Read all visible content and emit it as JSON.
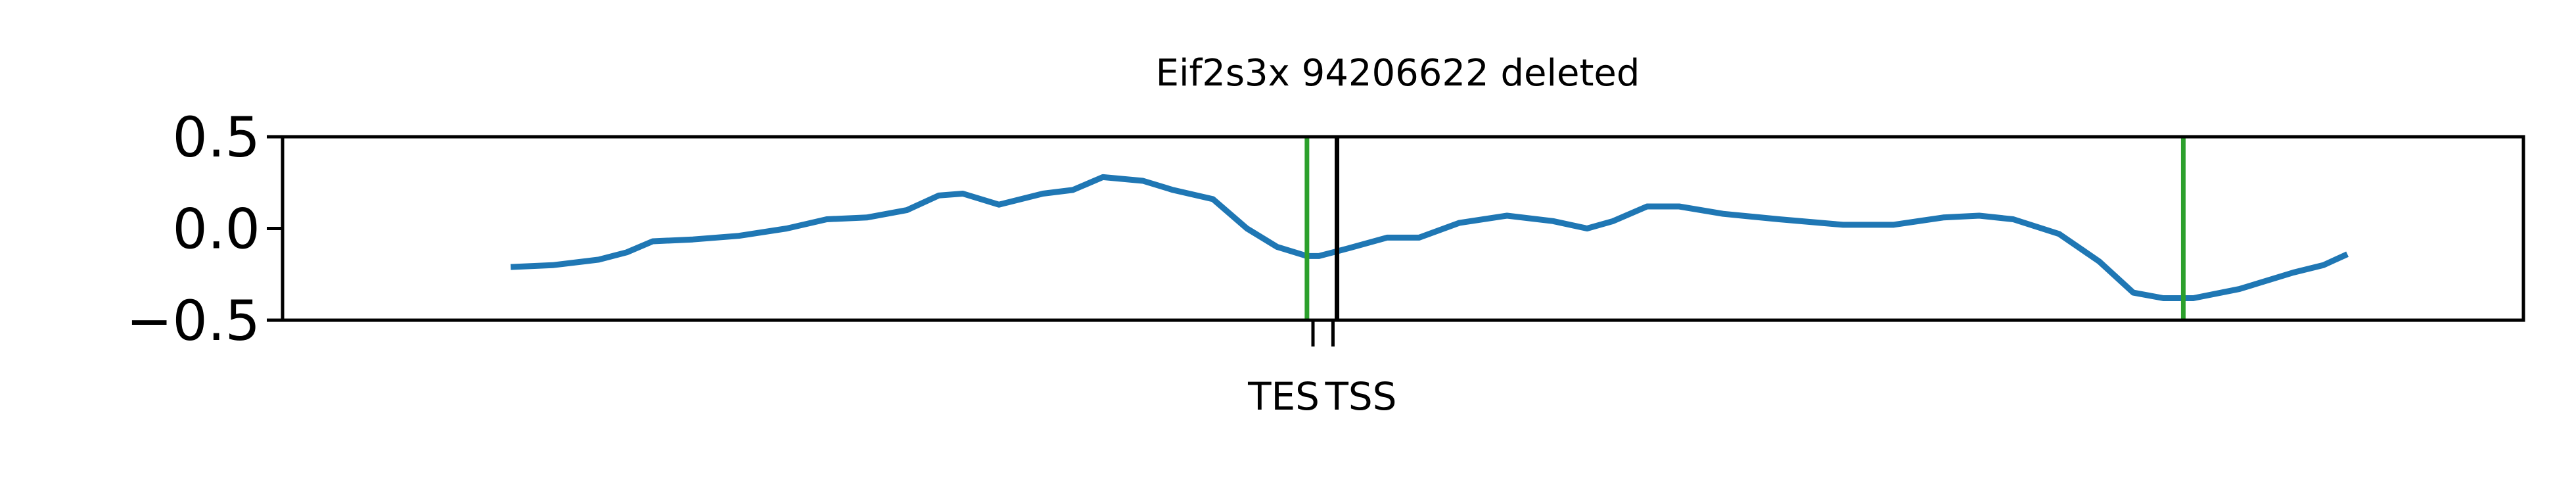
{
  "chart_data": {
    "type": "line",
    "title": "Eif2s3x 94206622 deleted",
    "xlabel": "",
    "ylabel": "",
    "ylim": [
      -0.5,
      0.5
    ],
    "xlim": [
      -0.12,
      1.0
    ],
    "yticks": [
      0.5,
      0.0,
      -0.5
    ],
    "ytick_labels": [
      "0.5",
      "0.0",
      "−0.5"
    ],
    "xticks": [
      {
        "x": 0.395,
        "label": "TES"
      },
      {
        "x": 0.405,
        "label": "TSS"
      }
    ],
    "series": [
      {
        "name": "",
        "color": "#1f77b4",
        "points": [
          [
            -0.006,
            -0.21
          ],
          [
            0.015,
            -0.2
          ],
          [
            0.038,
            -0.17
          ],
          [
            0.052,
            -0.13
          ],
          [
            0.065,
            -0.07
          ],
          [
            0.085,
            -0.06
          ],
          [
            0.108,
            -0.04
          ],
          [
            0.132,
            0.0
          ],
          [
            0.152,
            0.05
          ],
          [
            0.172,
            0.06
          ],
          [
            0.192,
            0.1
          ],
          [
            0.208,
            0.18
          ],
          [
            0.22,
            0.19
          ],
          [
            0.238,
            0.13
          ],
          [
            0.26,
            0.19
          ],
          [
            0.275,
            0.21
          ],
          [
            0.29,
            0.28
          ],
          [
            0.31,
            0.26
          ],
          [
            0.325,
            0.21
          ],
          [
            0.345,
            0.16
          ],
          [
            0.362,
            0.0
          ],
          [
            0.377,
            -0.1
          ],
          [
            0.392,
            -0.15
          ],
          [
            0.398,
            -0.15
          ],
          [
            0.412,
            -0.11
          ],
          [
            0.432,
            -0.05
          ],
          [
            0.448,
            -0.05
          ],
          [
            0.468,
            0.03
          ],
          [
            0.492,
            0.07
          ],
          [
            0.515,
            0.04
          ],
          [
            0.532,
            0.0
          ],
          [
            0.545,
            0.04
          ],
          [
            0.562,
            0.12
          ],
          [
            0.578,
            0.12
          ],
          [
            0.6,
            0.08
          ],
          [
            0.628,
            0.05
          ],
          [
            0.66,
            0.02
          ],
          [
            0.685,
            0.02
          ],
          [
            0.71,
            0.06
          ],
          [
            0.728,
            0.07
          ],
          [
            0.745,
            0.05
          ],
          [
            0.768,
            -0.03
          ],
          [
            0.788,
            -0.18
          ],
          [
            0.805,
            -0.35
          ],
          [
            0.82,
            -0.38
          ],
          [
            0.835,
            -0.38
          ],
          [
            0.858,
            -0.33
          ],
          [
            0.885,
            -0.24
          ],
          [
            0.9,
            -0.2
          ],
          [
            0.912,
            -0.14
          ]
        ]
      }
    ],
    "vlines": [
      {
        "x": 0.392,
        "color": "#2ca02c"
      },
      {
        "x": 0.407,
        "color": "#000000"
      },
      {
        "x": 0.83,
        "color": "#2ca02c"
      }
    ]
  }
}
